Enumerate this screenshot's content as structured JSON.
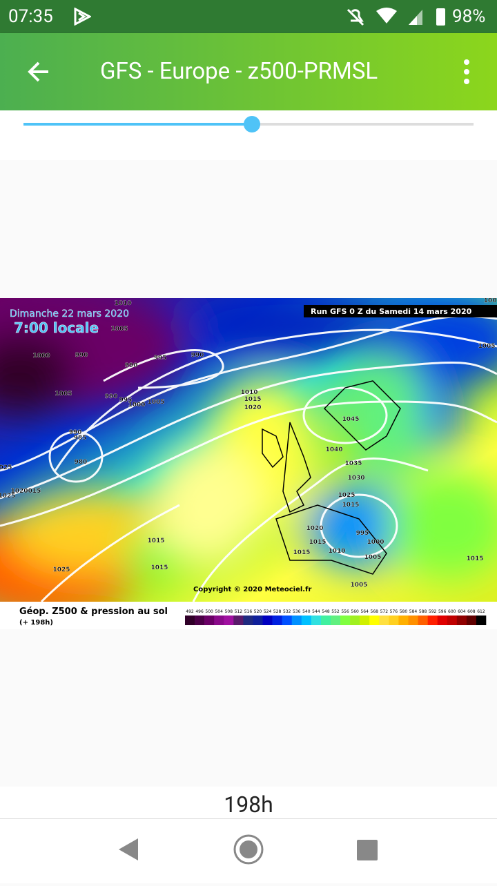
{
  "status_bar": {
    "time": "07:35",
    "battery": "98%"
  },
  "app_bar": {
    "title": "GFS - Europe - z500-PRMSL"
  },
  "map": {
    "date": "Dimanche 22 mars 2020",
    "local_time": "7:00 locale",
    "run": "Run GFS 0 Z du Samedi 14 mars 2020",
    "copyright": "Copyright © 2020 Meteociel.fr",
    "isobars": [
      "1010",
      "1005",
      "1000",
      "990",
      "990",
      "995",
      "990",
      "1005",
      "990",
      "995",
      "1000",
      "1005",
      "1010",
      "1015",
      "1020",
      "990",
      "985",
      "980",
      "025",
      "1025",
      "1020",
      "015",
      "1045",
      "1040",
      "1035",
      "1030",
      "1025",
      "1015",
      "1020",
      "995",
      "1000",
      "1015",
      "1010",
      "1015",
      "1005",
      "1015",
      "1015",
      "1025",
      "1005",
      "1005",
      "1015",
      "100"
    ]
  },
  "legend": {
    "title": "Géop. Z500 & pression au sol",
    "lead": "(+ 198h)",
    "labels": [
      492,
      496,
      500,
      504,
      508,
      512,
      516,
      520,
      524,
      528,
      532,
      536,
      540,
      544,
      548,
      552,
      556,
      560,
      564,
      568,
      572,
      576,
      580,
      584,
      588,
      592,
      596,
      600,
      604,
      608,
      612
    ],
    "colors": [
      "#300028",
      "#4b0046",
      "#6a0066",
      "#8a0a8a",
      "#a010a0",
      "#5a1a6a",
      "#202a80",
      "#10209a",
      "#0000c0",
      "#0020e0",
      "#0050ff",
      "#0090ff",
      "#00c0ff",
      "#30e0e0",
      "#40f0a0",
      "#60f080",
      "#80ff40",
      "#a0f020",
      "#d0f000",
      "#ffff00",
      "#ffe040",
      "#ffd020",
      "#ffb000",
      "#ff9000",
      "#ff6000",
      "#ff2000",
      "#e00000",
      "#c00000",
      "#900000",
      "#600000",
      "#000000"
    ]
  },
  "footer": {
    "lead": "198h"
  }
}
